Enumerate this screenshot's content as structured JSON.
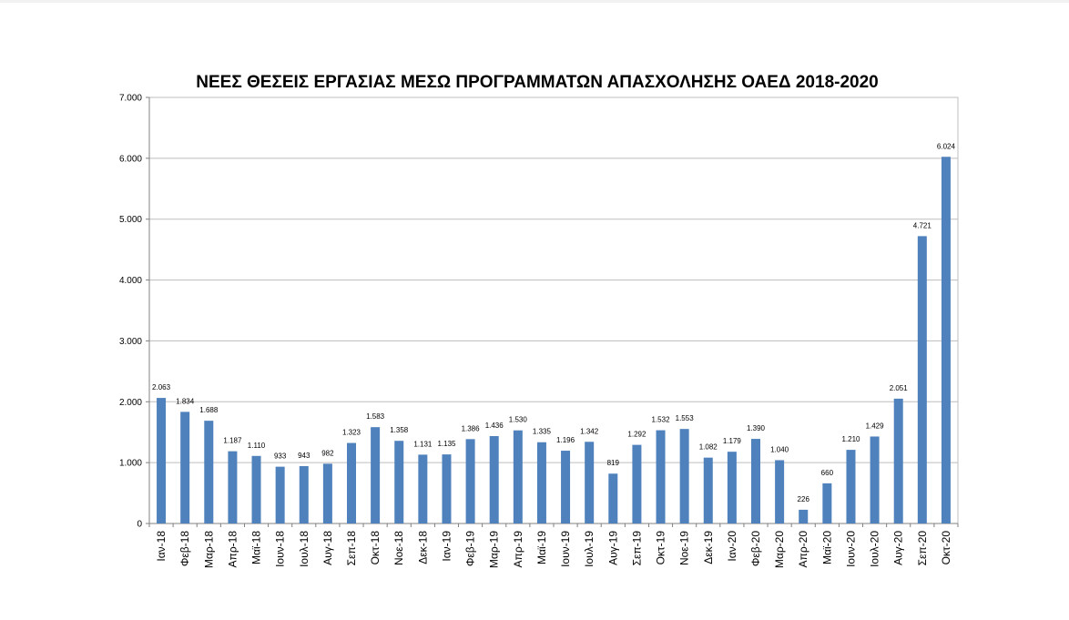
{
  "chart_data": {
    "type": "bar",
    "title": "ΝΕΕΣ ΘΕΣΕΙΣ ΕΡΓΑΣΙΑΣ ΜΕΣΩ ΠΡΟΓΡΑΜΜΑΤΩΝ ΑΠΑΣΧΟΛΗΣΗΣ ΟΑΕΔ 2018-2020",
    "xlabel": "",
    "ylabel": "",
    "ylim": [
      0,
      7000
    ],
    "yticks": [
      0,
      1000,
      2000,
      3000,
      4000,
      5000,
      6000,
      7000
    ],
    "ytick_labels": [
      "0",
      "1.000",
      "2.000",
      "3.000",
      "4.000",
      "5.000",
      "6.000",
      "7.000"
    ],
    "grid": true,
    "bar_color": "#4f81bd",
    "categories": [
      "Ιαν-18",
      "Φεβ-18",
      "Μαρ-18",
      "Απρ-18",
      "Μαϊ-18",
      "Ιουν-18",
      "Ιουλ-18",
      "Αυγ-18",
      "Σεπ-18",
      "Οκτ-18",
      "Νοε-18",
      "Δεκ-18",
      "Ιαν-19",
      "Φεβ-19",
      "Μαρ-19",
      "Απρ-19",
      "Μαϊ-19",
      "Ιουν-19",
      "Ιουλ-19",
      "Αυγ-19",
      "Σεπ-19",
      "Οκτ-19",
      "Νοε-19",
      "Δεκ-19",
      "Ιαν-20",
      "Φεβ-20",
      "Μαρ-20",
      "Απρ-20",
      "Μαϊ-20",
      "Ιουν-20",
      "Ιουλ-20",
      "Αυγ-20",
      "Σεπ-20",
      "Οκτ-20"
    ],
    "values": [
      2063,
      1834,
      1688,
      1187,
      1110,
      933,
      943,
      982,
      1323,
      1583,
      1358,
      1131,
      1135,
      1386,
      1436,
      1530,
      1335,
      1196,
      1342,
      819,
      1292,
      1532,
      1553,
      1082,
      1179,
      1390,
      1040,
      226,
      660,
      1210,
      1429,
      2051,
      4721,
      6024
    ],
    "value_labels": [
      "2.063",
      "1.834",
      "1.688",
      "1.187",
      "1.110",
      "933",
      "943",
      "982",
      "1.323",
      "1.583",
      "1.358",
      "1.131",
      "1.135",
      "1.386",
      "1.436",
      "1.530",
      "1.335",
      "1.196",
      "1.342",
      "819",
      "1.292",
      "1.532",
      "1.553",
      "1.082",
      "1.179",
      "1.390",
      "1.040",
      "226",
      "660",
      "1.210",
      "1.429",
      "2.051",
      "4.721",
      "6.024"
    ]
  }
}
